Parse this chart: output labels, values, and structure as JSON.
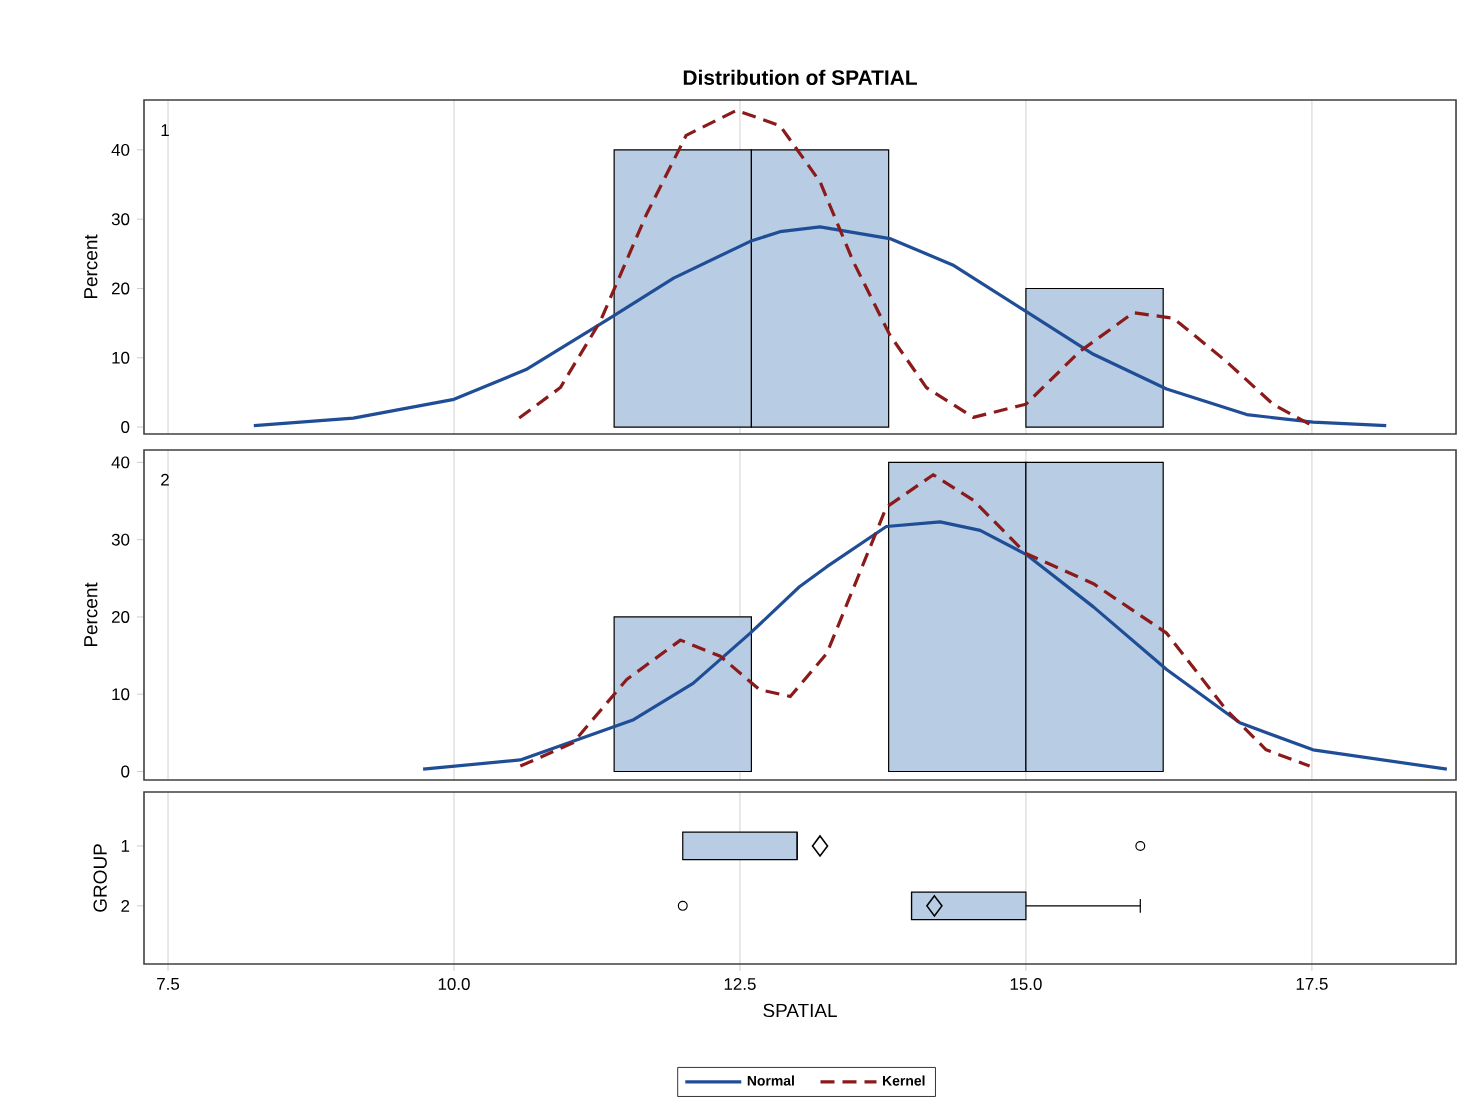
{
  "chart_data": [
    {
      "type": "histogram",
      "title": "Distribution of SPATIAL",
      "ylabel": "Percent",
      "annotations": [
        "1"
      ],
      "bins": [
        11.4,
        12.6,
        13.8,
        15.0,
        16.2
      ],
      "values": [
        40,
        40,
        0,
        20
      ],
      "color": "#b8cce4",
      "xlim": [
        7.29,
        18.76
      ],
      "ylim": [
        -1.0,
        47.2
      ],
      "yticks": [
        0,
        10,
        20,
        30,
        40
      ],
      "grid": "x",
      "tick_labels": "y",
      "legend": "bottom",
      "series": [
        {
          "type": "line",
          "name": "Normal",
          "color": "#1f4e96",
          "line_style": "solid",
          "x": [
            8.25,
            9.12,
            10.0,
            10.63,
            11.36,
            11.92,
            12.59,
            12.85,
            13.2,
            13.81,
            14.36,
            15.0,
            15.59,
            16.23,
            16.93,
            17.51,
            18.15
          ],
          "values": [
            0.2,
            1.3,
            4.0,
            8.3,
            15.7,
            21.5,
            26.8,
            28.2,
            28.9,
            27.2,
            23.4,
            16.7,
            10.5,
            5.5,
            1.8,
            0.7,
            0.2
          ]
        },
        {
          "type": "line",
          "name": "Kernel",
          "color": "#8b1a1a",
          "line_style": "dashed",
          "x": [
            10.57,
            10.93,
            11.28,
            11.68,
            12.03,
            12.47,
            12.85,
            13.2,
            13.49,
            13.81,
            14.13,
            14.54,
            15.0,
            15.47,
            15.94,
            16.29,
            16.75,
            17.16,
            17.48
          ],
          "values": [
            1.3,
            5.7,
            15.3,
            30.6,
            42.1,
            45.7,
            43.5,
            35.4,
            23.9,
            13.3,
            5.7,
            1.4,
            3.3,
            10.9,
            16.5,
            15.7,
            9.5,
            3.3,
            0.4
          ]
        }
      ]
    },
    {
      "type": "histogram",
      "ylabel": "Percent",
      "annotations": [
        "2"
      ],
      "bins": [
        11.4,
        12.6,
        13.8,
        15.0,
        16.2
      ],
      "values": [
        20,
        0,
        40,
        40
      ],
      "color": "#b8cce4",
      "xlim": [
        7.29,
        18.76
      ],
      "ylim": [
        -1.1,
        41.6
      ],
      "yticks": [
        0,
        10,
        20,
        30,
        40
      ],
      "grid": "x",
      "tick_labels": "y",
      "series": [
        {
          "type": "line",
          "color": "#1f4e96",
          "line_style": "solid",
          "x": [
            9.73,
            10.58,
            11.57,
            12.09,
            12.59,
            13.02,
            13.26,
            13.78,
            14.25,
            14.6,
            15.0,
            15.59,
            16.23,
            16.87,
            17.51,
            18.68
          ],
          "values": [
            0.3,
            1.5,
            6.7,
            11.4,
            17.9,
            23.9,
            26.5,
            31.7,
            32.3,
            31.2,
            28.1,
            21.3,
            13.2,
            6.3,
            2.8,
            0.3
          ]
        },
        {
          "type": "line",
          "color": "#8b1a1a",
          "line_style": "dashed",
          "x": [
            10.58,
            11.04,
            11.51,
            11.98,
            12.33,
            12.67,
            12.94,
            13.26,
            13.78,
            14.19,
            14.54,
            15.0,
            15.59,
            16.23,
            16.75,
            17.1,
            17.48
          ],
          "values": [
            0.7,
            3.7,
            11.9,
            17.0,
            14.9,
            10.6,
            9.7,
            15.3,
            34.2,
            38.4,
            35.1,
            28.2,
            24.3,
            17.9,
            8.0,
            2.8,
            0.7
          ]
        }
      ]
    },
    {
      "type": "box",
      "orientation": "horizontal",
      "xlabel": "SPATIAL",
      "ylabel": "GROUP",
      "categories": [
        "1",
        "2"
      ],
      "color": "#b8cce4",
      "xlim": [
        7.29,
        18.76
      ],
      "xticks": [
        7.5,
        {
          "value": 10,
          "label": "10.0"
        },
        12.5,
        {
          "value": 15,
          "label": "15.0"
        },
        17.5
      ],
      "grid": "x",
      "boxes": [
        {
          "low": 12,
          "q1": 12,
          "median": 13,
          "q3": 13,
          "high": 13,
          "mean": 13.2,
          "outliers": [
            16
          ]
        },
        {
          "low": 14,
          "q1": 14,
          "median": 14,
          "q3": 15,
          "high": 16,
          "mean": 14.2,
          "outliers": [
            12
          ]
        }
      ]
    }
  ]
}
